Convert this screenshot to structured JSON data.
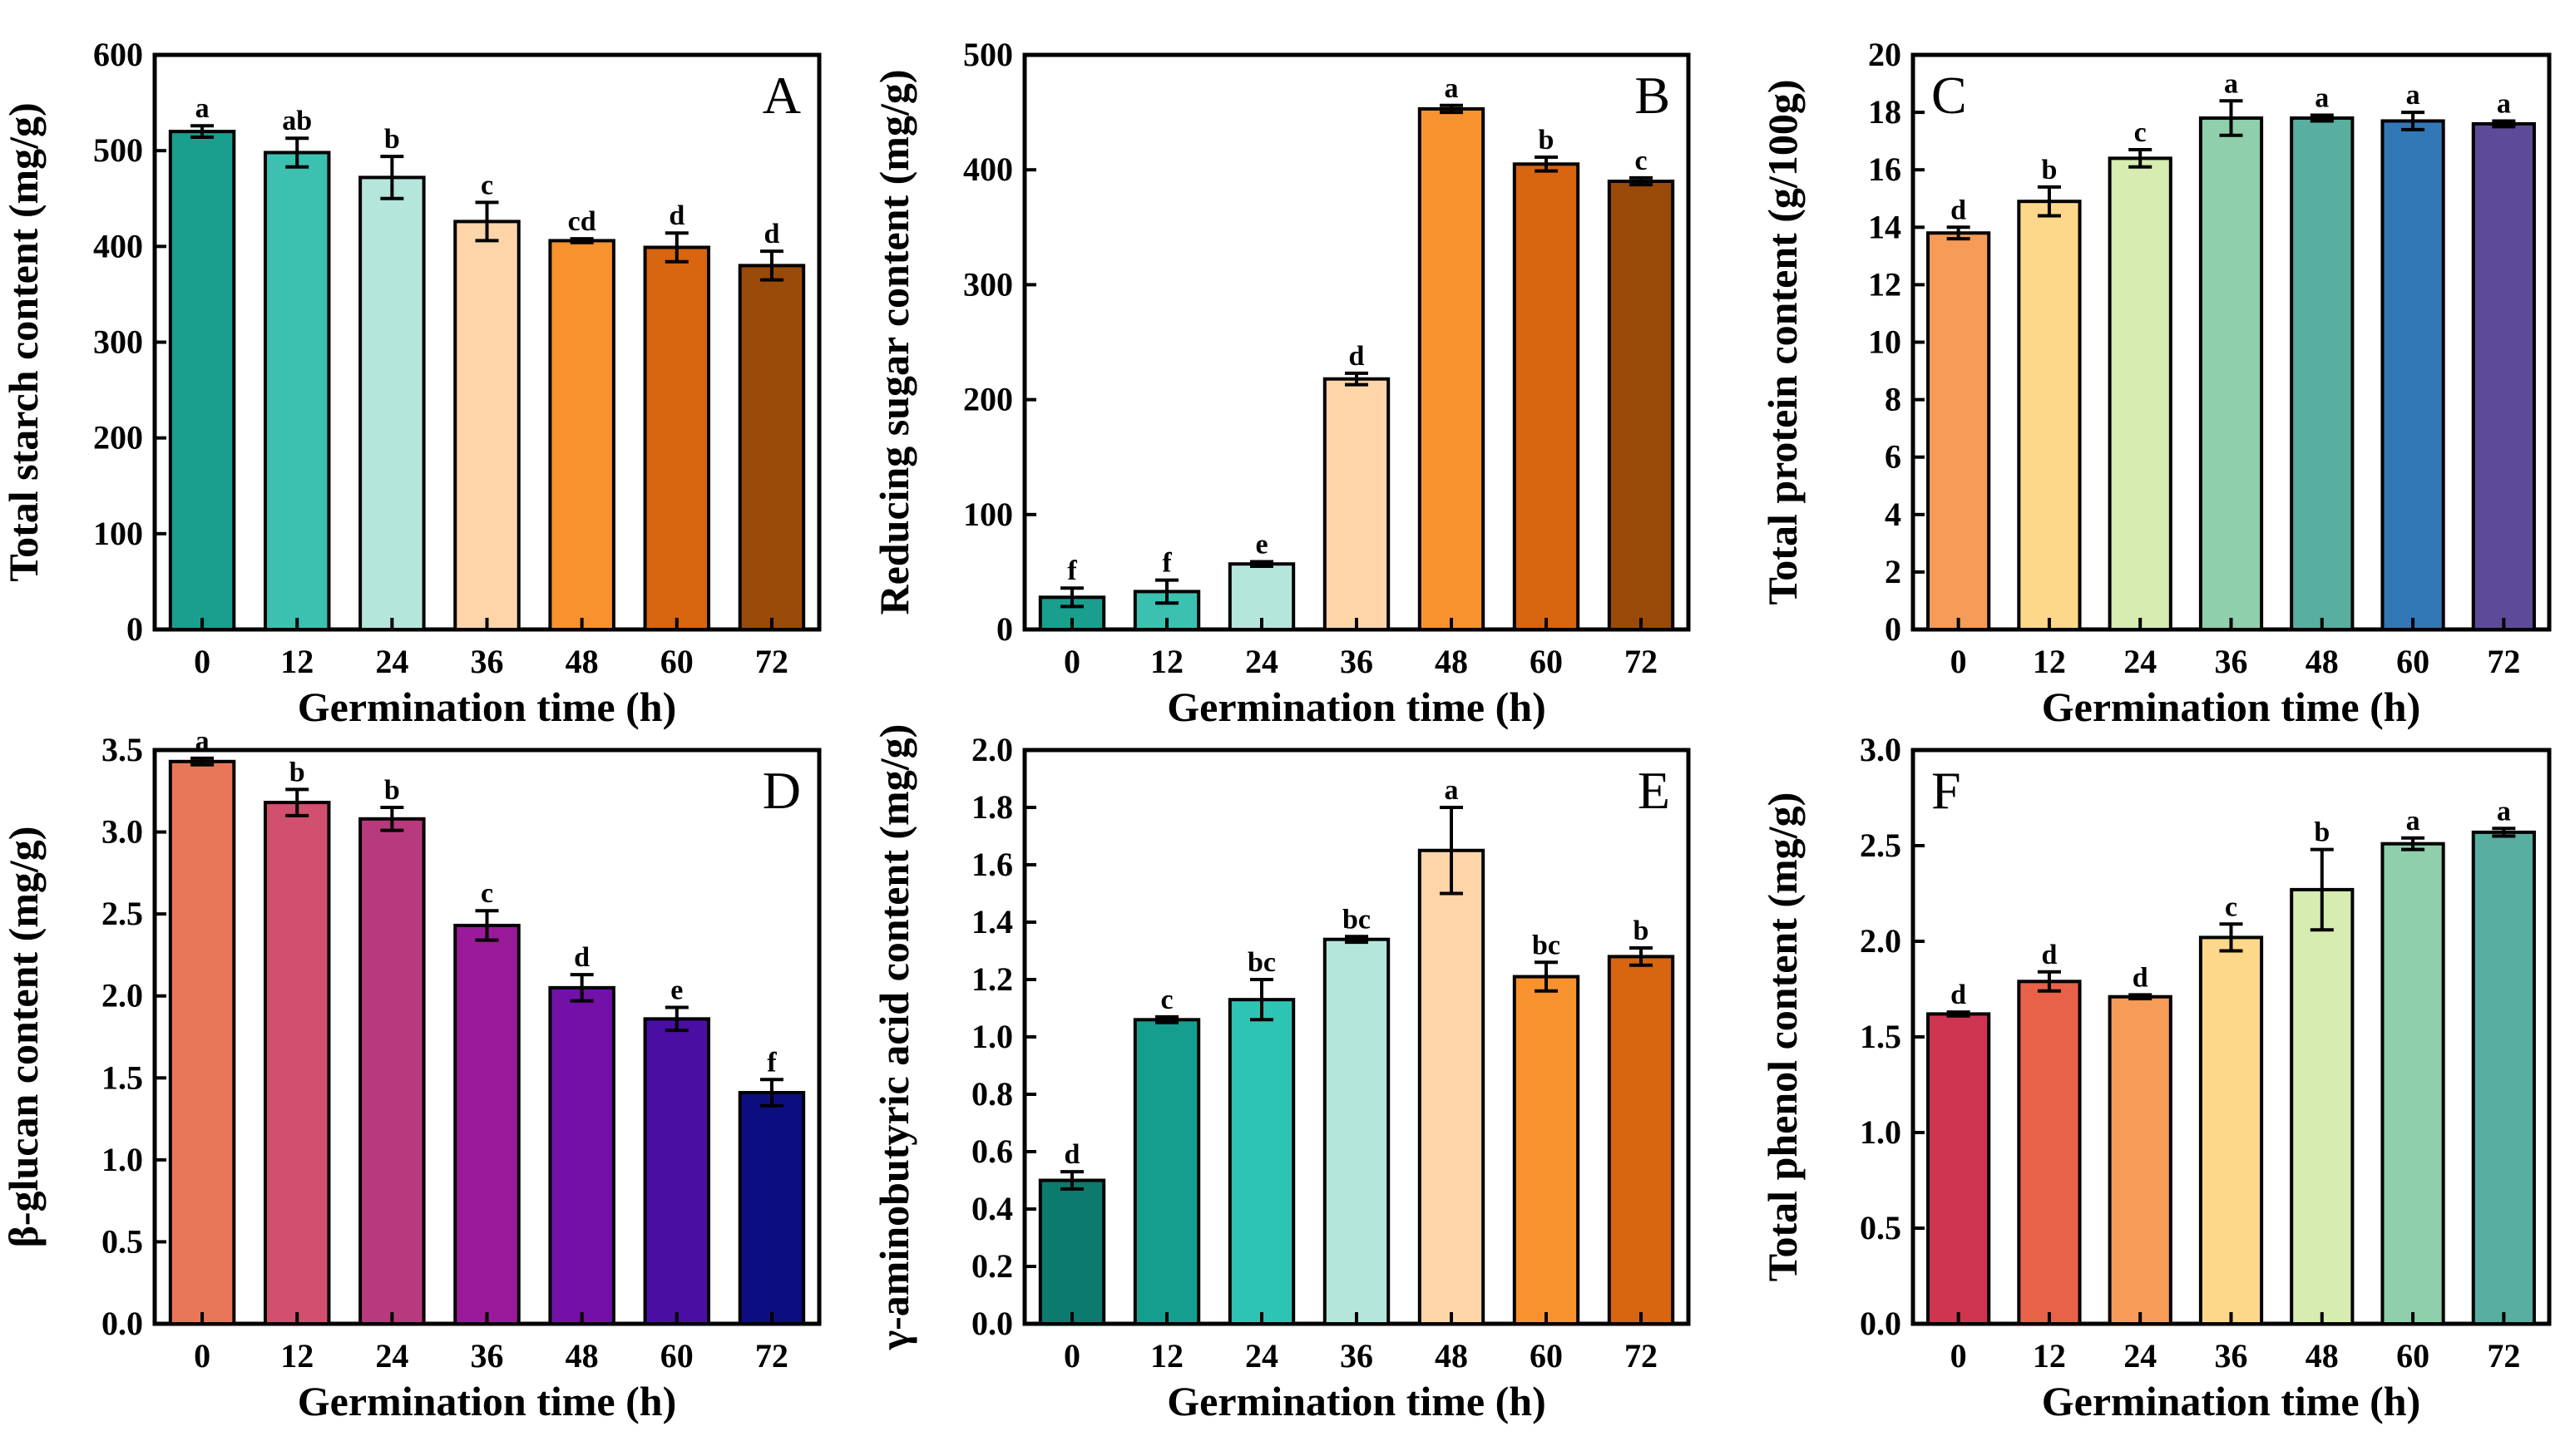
{
  "chart_data": [
    {
      "type": "bar",
      "panel": "A",
      "xlabel": "Germination time (h)",
      "ylabel": "Total starch content (mg/g)",
      "categories": [
        "0",
        "12",
        "24",
        "36",
        "48",
        "60",
        "72"
      ],
      "values": [
        520,
        498,
        472,
        426,
        406,
        399,
        380
      ],
      "errors": [
        6,
        15,
        22,
        20,
        2,
        15,
        15
      ],
      "significance": [
        "a",
        "ab",
        "b",
        "c",
        "cd",
        "d",
        "d"
      ],
      "ylim": [
        0,
        600
      ],
      "yticks": [
        "0",
        "100",
        "200",
        "300",
        "400",
        "500",
        "600"
      ],
      "colors": [
        "#1a9e8e",
        "#3cc0b0",
        "#b5e6dc",
        "#fdd5a8",
        "#f8922e",
        "#d8650f",
        "#9a4a08"
      ]
    },
    {
      "type": "bar",
      "panel": "B",
      "xlabel": "Germination time (h)",
      "ylabel": "Reducing sugar content (mg/g)",
      "categories": [
        "0",
        "12",
        "24",
        "36",
        "48",
        "60",
        "72"
      ],
      "values": [
        28,
        33,
        57,
        218,
        453,
        405,
        390
      ],
      "errors": [
        8,
        10,
        2,
        5,
        3,
        6,
        3
      ],
      "significance": [
        "f",
        "f",
        "e",
        "d",
        "a",
        "b",
        "c"
      ],
      "ylim": [
        0,
        500
      ],
      "yticks": [
        "0",
        "100",
        "200",
        "300",
        "400",
        "500"
      ],
      "colors": [
        "#1a9e8e",
        "#3cc0b0",
        "#b5e6dc",
        "#fdd5a8",
        "#f8922e",
        "#d8650f",
        "#9a4a08"
      ]
    },
    {
      "type": "bar",
      "panel": "C",
      "xlabel": "Germination time (h)",
      "ylabel": "Total protein content (g/100g)",
      "categories": [
        "0",
        "12",
        "24",
        "36",
        "48",
        "60",
        "72"
      ],
      "values": [
        13.8,
        14.9,
        16.4,
        17.8,
        17.8,
        17.7,
        17.6
      ],
      "errors": [
        0.2,
        0.5,
        0.3,
        0.6,
        0.1,
        0.3,
        0.1
      ],
      "significance": [
        "d",
        "b",
        "c",
        "a",
        "a",
        "a",
        "a"
      ],
      "ylim": [
        0,
        20
      ],
      "yticks": [
        "0",
        "2",
        "4",
        "6",
        "8",
        "10",
        "12",
        "14",
        "16",
        "18",
        "20"
      ],
      "colors": [
        "#f79b58",
        "#fdd88a",
        "#d6ecb0",
        "#8fcfab",
        "#58ae9f",
        "#3378b6",
        "#5d4b99"
      ]
    },
    {
      "type": "bar",
      "panel": "D",
      "xlabel": "Germination time (h)",
      "ylabel": "β-glucan content (mg/g)",
      "categories": [
        "0",
        "12",
        "24",
        "36",
        "48",
        "60",
        "72"
      ],
      "values": [
        3.43,
        3.18,
        3.08,
        2.43,
        2.05,
        1.86,
        1.41
      ],
      "errors": [
        0.02,
        0.08,
        0.07,
        0.09,
        0.08,
        0.07,
        0.08
      ],
      "significance": [
        "a",
        "b",
        "b",
        "c",
        "d",
        "e",
        "f"
      ],
      "ylim": [
        0,
        3.5
      ],
      "yticks": [
        "0.0",
        "0.5",
        "1.0",
        "1.5",
        "2.0",
        "2.5",
        "3.0",
        "3.5"
      ],
      "colors": [
        "#e8775a",
        "#d2506f",
        "#b83a7e",
        "#9b1a9a",
        "#7210a8",
        "#4a0ea3",
        "#0c0e80"
      ]
    },
    {
      "type": "bar",
      "panel": "E",
      "xlabel": "Germination time (h)",
      "ylabel": "γ-aminobutyric acid content (mg/g)",
      "categories": [
        "0",
        "12",
        "24",
        "36",
        "48",
        "60",
        "72"
      ],
      "values": [
        0.5,
        1.06,
        1.13,
        1.34,
        1.65,
        1.21,
        1.28
      ],
      "errors": [
        0.03,
        0.01,
        0.07,
        0.01,
        0.15,
        0.05,
        0.03
      ],
      "significance": [
        "d",
        "c",
        "bc",
        "bc",
        "a",
        "bc",
        "b"
      ],
      "ylim": [
        0,
        2.0
      ],
      "yticks": [
        "0.0",
        "0.2",
        "0.4",
        "0.6",
        "0.8",
        "1.0",
        "1.2",
        "1.4",
        "1.6",
        "1.8",
        "2.0"
      ],
      "colors": [
        "#0d7a6e",
        "#149e8e",
        "#2ec4b4",
        "#b5e6dc",
        "#fdd5a8",
        "#f8922e",
        "#d8650f"
      ]
    },
    {
      "type": "bar",
      "panel": "F",
      "xlabel": "Germination time (h)",
      "ylabel": "Total phenol content (mg/g)",
      "categories": [
        "0",
        "12",
        "24",
        "36",
        "48",
        "60",
        "72"
      ],
      "values": [
        1.62,
        1.79,
        1.71,
        2.02,
        2.27,
        2.51,
        2.57
      ],
      "errors": [
        0.01,
        0.05,
        0.01,
        0.07,
        0.21,
        0.03,
        0.02
      ],
      "significance": [
        "d",
        "d",
        "d",
        "c",
        "b",
        "a",
        "a"
      ],
      "ylim": [
        0,
        3.0
      ],
      "yticks": [
        "0.0",
        "0.5",
        "1.0",
        "1.5",
        "2.0",
        "2.5",
        "3.0"
      ],
      "colors": [
        "#cf3450",
        "#e8624a",
        "#f79b58",
        "#fdd88a",
        "#d6ecb0",
        "#8fcfab",
        "#58ae9f"
      ]
    }
  ]
}
